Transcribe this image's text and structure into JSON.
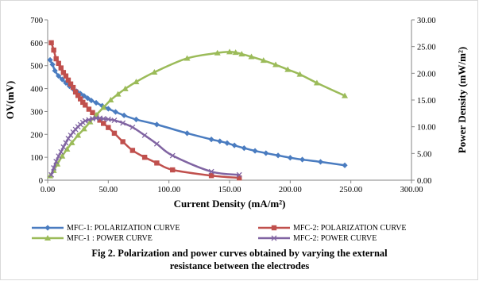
{
  "chart_data": {
    "type": "line",
    "xlabel": "Current Density (mA/m²)",
    "ylabel_left": "OV(mV)",
    "ylabel_right": "Power Density (mW/m²)",
    "xlim": [
      0,
      300
    ],
    "ylim_left": [
      0,
      700
    ],
    "ylim_right": [
      0,
      30
    ],
    "x_ticks": [
      "0.00",
      "50.00",
      "100.00",
      "150.00",
      "200.00",
      "250.00",
      "300.00"
    ],
    "y_left_ticks": [
      "0",
      "100",
      "200",
      "300",
      "400",
      "500",
      "600",
      "700"
    ],
    "y_right_ticks": [
      "0.00",
      "5.00",
      "10.00",
      "15.00",
      "20.00",
      "25.00",
      "30.00"
    ],
    "grid": false,
    "legend_position": "bottom",
    "series": [
      {
        "name": "MFC-1: POLARIZATION CURVE",
        "axis": "left",
        "color": "#4a7cc0",
        "marker": "diamond",
        "x": [
          2,
          4,
          6,
          9,
          12,
          15,
          18,
          21,
          24,
          27,
          30,
          33,
          36,
          40,
          45,
          50,
          56,
          63,
          73,
          90,
          115,
          135,
          142,
          148,
          154,
          162,
          171,
          180,
          190,
          200,
          210,
          225,
          245
        ],
        "y": [
          525,
          505,
          478,
          455,
          440,
          425,
          410,
          398,
          388,
          378,
          368,
          358,
          348,
          338,
          325,
          312,
          298,
          283,
          265,
          243,
          205,
          178,
          170,
          162,
          152,
          140,
          128,
          118,
          108,
          98,
          90,
          80,
          65
        ]
      },
      {
        "name": "MFC-2: POLARIZATION CURVE",
        "axis": "left",
        "color": "#c0504d",
        "marker": "square",
        "x": [
          3,
          5,
          7,
          9,
          11,
          13,
          15,
          17,
          19,
          21,
          23,
          25,
          27,
          29,
          31,
          34,
          37,
          40,
          43,
          46,
          50,
          55,
          62,
          70,
          80,
          90,
          103,
          135,
          158
        ],
        "y": [
          600,
          568,
          530,
          510,
          490,
          470,
          455,
          437,
          420,
          405,
          385,
          370,
          355,
          340,
          328,
          310,
          295,
          278,
          262,
          248,
          230,
          205,
          168,
          130,
          100,
          75,
          45,
          20,
          10
        ]
      },
      {
        "name": "MFC-1 : POWER CURVE",
        "axis": "right",
        "color": "#9bbb59",
        "marker": "triangle",
        "x": [
          2,
          5,
          8,
          12,
          16,
          20,
          25,
          30,
          35,
          40,
          46,
          52,
          58,
          64,
          73,
          88,
          115,
          140,
          150,
          155,
          160,
          168,
          178,
          188,
          198,
          208,
          222,
          245
        ],
        "y": [
          0.8,
          1.8,
          3.0,
          4.5,
          5.8,
          7.0,
          8.4,
          9.6,
          10.9,
          12.2,
          13.6,
          15.0,
          16.1,
          17.1,
          18.4,
          20.2,
          22.8,
          23.8,
          24.0,
          23.9,
          23.6,
          23.1,
          22.4,
          21.6,
          20.7,
          19.8,
          18.2,
          15.8
        ]
      },
      {
        "name": "MFC-2: POWER CURVE",
        "axis": "right",
        "color": "#8064a2",
        "marker": "x",
        "x": [
          3,
          5,
          7,
          9,
          11,
          13,
          15,
          17,
          19,
          21,
          23,
          25,
          27,
          29,
          31,
          34,
          37,
          40,
          43,
          46,
          50,
          55,
          62,
          70,
          80,
          90,
          103,
          135,
          158
        ],
        "y": [
          1.0,
          2.3,
          3.5,
          4.5,
          5.3,
          6.2,
          7.0,
          7.8,
          8.4,
          9.0,
          9.5,
          10.0,
          10.4,
          10.8,
          11.1,
          11.3,
          11.5,
          11.6,
          11.6,
          11.5,
          11.4,
          11.2,
          10.7,
          9.9,
          8.4,
          6.8,
          4.6,
          1.6,
          1.0
        ]
      }
    ]
  },
  "caption": {
    "line1": "Fig 2.  Polarization and power curves obtained by varying the external",
    "line2": "resistance between  the electrodes"
  }
}
